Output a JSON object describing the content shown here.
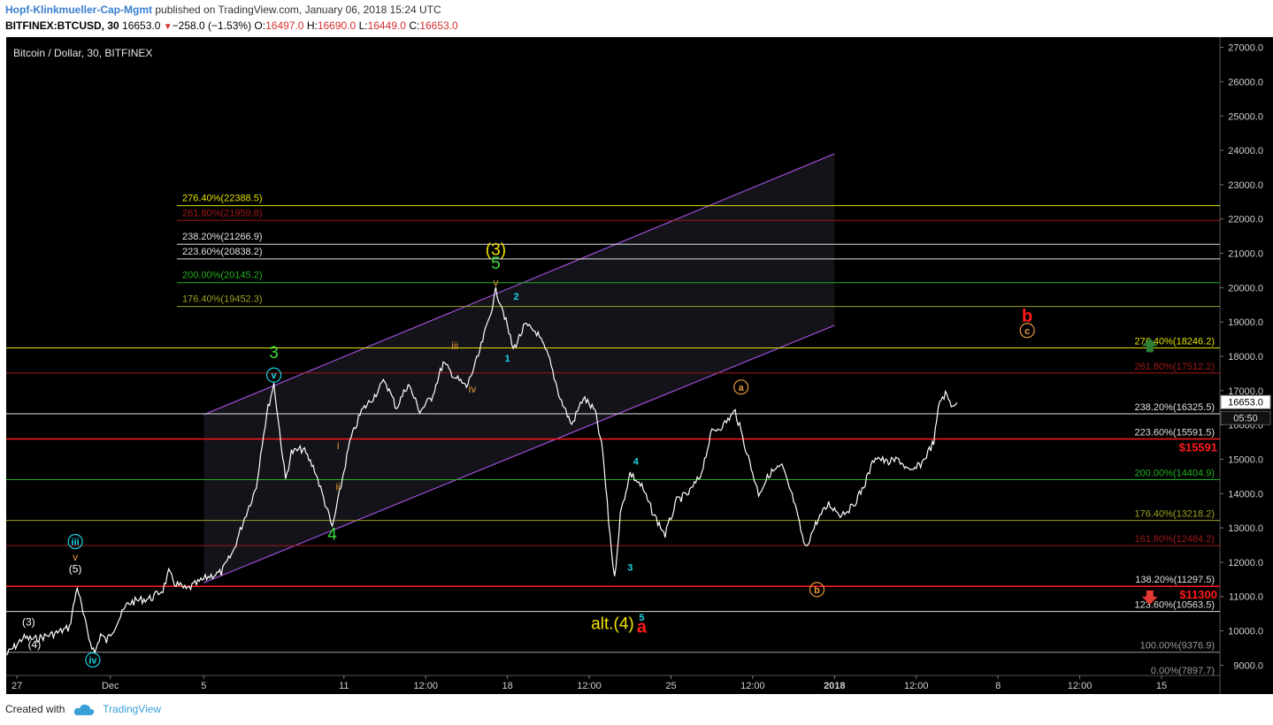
{
  "header": {
    "author": "Hopf-Klinkmueller-Cap-Mgmt",
    "published_text": "published on TradingView.com, January 06, 2018 15:24 UTC",
    "symbol": "BITFINEX:BTCUSD, 30",
    "last": "16653.0",
    "change": "−258.0 (−1.53%)",
    "o_label": "O:",
    "o_value": "16497.0",
    "h_label": "H:",
    "h_value": "16690.0",
    "l_label": "L:",
    "l_value": "16449.0",
    "c_label": "C:",
    "c_value": "16653.0"
  },
  "chart_title": "Bitcoin / Dollar, 30, BITFINEX",
  "price_tag": "16653.0",
  "countdown_tag": "05:50",
  "footer": {
    "created_with": "Created with",
    "brand": "TradingView"
  },
  "colors": {
    "background": "#000000",
    "price": "#ffffff",
    "channel": "#9c4fd6",
    "fib_yellow": "#e0e000",
    "fib_red": "#a01818",
    "fib_white": "#e0e0e0",
    "fib_green": "#20b020",
    "fib_olive": "#a0a020",
    "fib_gray": "#9a9a9a",
    "key_red": "#ff1a1a",
    "wave_green": "#3ddc3d",
    "wave_yellow": "#f5e400",
    "wave_orange": "#e89a3c",
    "wave_cyan": "#19d3e6"
  },
  "chart_data": {
    "type": "line",
    "title": "Bitcoin / Dollar, 30, BITFINEX",
    "y_range": [
      8700,
      27300
    ],
    "x_range": [
      "2017-11-26 13:00",
      "2018-01-17 12:00"
    ],
    "x_ticks": [
      {
        "t": "2017-11-27 00:00",
        "label": "27"
      },
      {
        "t": "2017-12-01 00:00",
        "label": "Dec"
      },
      {
        "t": "2017-12-05 00:00",
        "label": "5"
      },
      {
        "t": "2017-12-11 00:00",
        "label": "11"
      },
      {
        "t": "2017-12-14 12:00",
        "label": "12:00"
      },
      {
        "t": "2017-12-18 00:00",
        "label": "18"
      },
      {
        "t": "2017-12-21 12:00",
        "label": "12:00"
      },
      {
        "t": "2017-12-25 00:00",
        "label": "25"
      },
      {
        "t": "2017-12-28 12:00",
        "label": "12:00"
      },
      {
        "t": "2018-01-01 00:00",
        "label": "2018"
      },
      {
        "t": "2018-01-04 12:00",
        "label": "12:00"
      },
      {
        "t": "2018-01-08 00:00",
        "label": "8"
      },
      {
        "t": "2018-01-11 12:00",
        "label": "12:00"
      },
      {
        "t": "2018-01-15 00:00",
        "label": "15"
      }
    ],
    "y_ticks": [
      "27000.0",
      "26000.0",
      "25000.0",
      "24000.0",
      "23000.0",
      "22000.0",
      "21000.0",
      "20000.0",
      "19000.0",
      "18000.0",
      "17000.0",
      "16000.0",
      "15000.0",
      "14000.0",
      "13000.0",
      "12000.0",
      "11000.0",
      "10000.0",
      "9000.0"
    ],
    "series": [
      {
        "points": [
          [
            "2017-11-26 13:00",
            9300
          ],
          [
            "2017-11-27 00:00",
            9600
          ],
          [
            "2017-11-27 06:00",
            9800
          ],
          [
            "2017-11-27 18:00",
            9750
          ],
          [
            "2017-11-28 06:00",
            9850
          ],
          [
            "2017-11-28 18:00",
            9950
          ],
          [
            "2017-11-29 06:00",
            10100
          ],
          [
            "2017-11-29 14:00",
            11300
          ],
          [
            "2017-11-29 20:00",
            10500
          ],
          [
            "2017-11-30 02:00",
            9800
          ],
          [
            "2017-11-30 08:00",
            9350
          ],
          [
            "2017-11-30 14:00",
            9900
          ],
          [
            "2017-11-30 20:00",
            9700
          ],
          [
            "2017-12-01 06:00",
            10200
          ],
          [
            "2017-12-01 18:00",
            10800
          ],
          [
            "2017-12-02 06:00",
            10900
          ],
          [
            "2017-12-02 18:00",
            10950
          ],
          [
            "2017-12-03 06:00",
            11200
          ],
          [
            "2017-12-03 12:00",
            11700
          ],
          [
            "2017-12-03 18:00",
            11400
          ],
          [
            "2017-12-04 06:00",
            11200
          ],
          [
            "2017-12-04 18:00",
            11400
          ],
          [
            "2017-12-05 06:00",
            11600
          ],
          [
            "2017-12-05 18:00",
            11700
          ],
          [
            "2017-12-06 06:00",
            12300
          ],
          [
            "2017-12-06 18:00",
            13300
          ],
          [
            "2017-12-07 06:00",
            14200
          ],
          [
            "2017-12-07 12:00",
            15500
          ],
          [
            "2017-12-07 18:00",
            16500
          ],
          [
            "2017-12-08 00:00",
            17200
          ],
          [
            "2017-12-08 06:00",
            15800
          ],
          [
            "2017-12-08 12:00",
            14400
          ],
          [
            "2017-12-08 18:00",
            15200
          ],
          [
            "2017-12-09 06:00",
            15300
          ],
          [
            "2017-12-09 18:00",
            14700
          ],
          [
            "2017-12-10 06:00",
            13600
          ],
          [
            "2017-12-10 12:00",
            13000
          ],
          [
            "2017-12-10 18:00",
            13800
          ],
          [
            "2017-12-11 06:00",
            15500
          ],
          [
            "2017-12-11 18:00",
            16400
          ],
          [
            "2017-12-12 06:00",
            16800
          ],
          [
            "2017-12-12 18:00",
            17300
          ],
          [
            "2017-12-13 06:00",
            16500
          ],
          [
            "2017-12-13 18:00",
            17200
          ],
          [
            "2017-12-14 06:00",
            16400
          ],
          [
            "2017-12-14 18:00",
            16800
          ],
          [
            "2017-12-15 06:00",
            17800
          ],
          [
            "2017-12-15 18:00",
            17400
          ],
          [
            "2017-12-16 06:00",
            17100
          ],
          [
            "2017-12-16 18:00",
            18000
          ],
          [
            "2017-12-17 06:00",
            19200
          ],
          [
            "2017-12-17 12:00",
            19900
          ],
          [
            "2017-12-17 18:00",
            19500
          ],
          [
            "2017-12-18 06:00",
            18200
          ],
          [
            "2017-12-18 18:00",
            18900
          ],
          [
            "2017-12-19 06:00",
            18700
          ],
          [
            "2017-12-19 18:00",
            18000
          ],
          [
            "2017-12-20 06:00",
            16800
          ],
          [
            "2017-12-20 18:00",
            16000
          ],
          [
            "2017-12-21 06:00",
            16800
          ],
          [
            "2017-12-21 18:00",
            16400
          ],
          [
            "2017-12-22 02:00",
            15200
          ],
          [
            "2017-12-22 08:00",
            13200
          ],
          [
            "2017-12-22 14:00",
            11500
          ],
          [
            "2017-12-22 20:00",
            13400
          ],
          [
            "2017-12-23 06:00",
            14600
          ],
          [
            "2017-12-23 18:00",
            14200
          ],
          [
            "2017-12-24 06:00",
            13400
          ],
          [
            "2017-12-24 18:00",
            12800
          ],
          [
            "2017-12-25 06:00",
            13800
          ],
          [
            "2017-12-25 18:00",
            14000
          ],
          [
            "2017-12-26 06:00",
            14500
          ],
          [
            "2017-12-26 18:00",
            15800
          ],
          [
            "2017-12-27 06:00",
            16000
          ],
          [
            "2017-12-27 18:00",
            16400
          ],
          [
            "2017-12-28 06:00",
            15200
          ],
          [
            "2017-12-28 18:00",
            14000
          ],
          [
            "2017-12-29 06:00",
            14600
          ],
          [
            "2017-12-29 18:00",
            14800
          ],
          [
            "2017-12-30 06:00",
            13800
          ],
          [
            "2017-12-30 18:00",
            12400
          ],
          [
            "2017-12-31 06:00",
            13200
          ],
          [
            "2017-12-31 18:00",
            13700
          ],
          [
            "2018-01-01 06:00",
            13400
          ],
          [
            "2018-01-01 18:00",
            13600
          ],
          [
            "2018-01-02 06:00",
            14200
          ],
          [
            "2018-01-02 18:00",
            15100
          ],
          [
            "2018-01-03 06:00",
            14900
          ],
          [
            "2018-01-03 18:00",
            15000
          ],
          [
            "2018-01-04 06:00",
            14600
          ],
          [
            "2018-01-04 18:00",
            14900
          ],
          [
            "2018-01-05 06:00",
            15500
          ],
          [
            "2018-01-05 12:00",
            16700
          ],
          [
            "2018-01-05 18:00",
            16900
          ],
          [
            "2018-01-06 00:00",
            16600
          ],
          [
            "2018-01-06 06:00",
            16653
          ]
        ]
      }
    ],
    "channel": {
      "upper": [
        [
          "2017-12-05 00:00",
          16300
        ],
        [
          "2018-01-01 00:00",
          23900
        ]
      ],
      "lower": [
        [
          "2017-12-05 00:00",
          11400
        ],
        [
          "2018-01-01 00:00",
          18900
        ]
      ]
    },
    "fib_levels_left": [
      {
        "label": "276.40%(22388.5)",
        "value": 22388.5,
        "color": "#e0e000"
      },
      {
        "label": "261.80%(21959.8)",
        "value": 21959.8,
        "color": "#a01818"
      },
      {
        "label": "238.20%(21266.9)",
        "value": 21266.9,
        "color": "#e0e0e0"
      },
      {
        "label": "223.60%(20838.2)",
        "value": 20838.2,
        "color": "#e0e0e0"
      },
      {
        "label": "200.00%(20145.2)",
        "value": 20145.2,
        "color": "#20b020"
      },
      {
        "label": "176.40%(19452.3)",
        "value": 19452.3,
        "color": "#a0a020"
      }
    ],
    "fib_levels_right": [
      {
        "label": "276.40%(18246.2)",
        "value": 18246.2,
        "color": "#e0e000"
      },
      {
        "label": "261.80%(17512.2)",
        "value": 17512.2,
        "color": "#a01818"
      },
      {
        "label": "238.20%(16325.5)",
        "value": 16325.5,
        "color": "#e0e0e0"
      },
      {
        "label": "223.60%(15591.5)",
        "value": 15591.5,
        "color": "#e0e0e0"
      },
      {
        "label": "200.00%(14404.9)",
        "value": 14404.9,
        "color": "#20b020"
      },
      {
        "label": "176.40%(13218.2)",
        "value": 13218.2,
        "color": "#a0a020"
      },
      {
        "label": "161.80%(12484.2)",
        "value": 12484.2,
        "color": "#a01818"
      },
      {
        "label": "138.20%(11297.5)",
        "value": 11297.5,
        "color": "#e0e0e0"
      },
      {
        "label": "123.60%(10563.5)",
        "value": 10563.5,
        "color": "#e0e0e0"
      },
      {
        "label": "100.00%(9376.9)",
        "value": 9376.9,
        "color": "#9a9a9a"
      },
      {
        "label": "0.00%(7897.7)",
        "value": 7897.7,
        "color": "#9a9a9a"
      }
    ],
    "key_levels": [
      {
        "label": "$15591",
        "value": 15591,
        "color": "#ff1a1a"
      },
      {
        "label": "$11300",
        "value": 11300,
        "color": "#ff1a1a"
      }
    ],
    "annotations": [
      {
        "text": "(3)",
        "t": "2017-12-17 12:00",
        "v": 20950,
        "color": "#f5e400",
        "style": "big"
      },
      {
        "text": "5",
        "t": "2017-12-17 12:00",
        "v": 20550,
        "color": "#3ddc3d",
        "style": "big"
      },
      {
        "text": "v",
        "t": "2017-12-17 12:00",
        "v": 20050,
        "color": "#e89a3c",
        "style": "small"
      },
      {
        "text": "2",
        "t": "2017-12-18 09:00",
        "v": 19650,
        "color": "#19d3e6",
        "style": "tiny"
      },
      {
        "text": "1",
        "t": "2017-12-18 00:00",
        "v": 17850,
        "color": "#19d3e6",
        "style": "tiny"
      },
      {
        "text": "iii",
        "t": "2017-12-15 18:00",
        "v": 18200,
        "color": "#e89a3c",
        "style": "small"
      },
      {
        "text": "iv",
        "t": "2017-12-16 12:00",
        "v": 16950,
        "color": "#e89a3c",
        "style": "small"
      },
      {
        "text": "3",
        "t": "2017-12-08 00:00",
        "v": 17950,
        "color": "#3ddc3d",
        "style": "big"
      },
      {
        "text": "v",
        "t": "2017-12-08 00:00",
        "v": 17350,
        "color": "#19d3e6",
        "style": "circle"
      },
      {
        "text": "i",
        "t": "2017-12-10 18:00",
        "v": 15300,
        "color": "#e89a3c",
        "style": "small"
      },
      {
        "text": "ii",
        "t": "2017-12-10 18:00",
        "v": 14100,
        "color": "#e89a3c",
        "style": "small"
      },
      {
        "text": "4",
        "t": "2017-12-10 12:00",
        "v": 12650,
        "color": "#3ddc3d",
        "style": "big"
      },
      {
        "text": "iii",
        "t": "2017-11-29 12:00",
        "v": 12500,
        "color": "#19d3e6",
        "style": "circle"
      },
      {
        "text": "v",
        "t": "2017-11-29 12:00",
        "v": 12050,
        "color": "#e89a3c",
        "style": "small"
      },
      {
        "text": "(5)",
        "t": "2017-11-29 12:00",
        "v": 11700,
        "color": "#ffffff",
        "style": "small"
      },
      {
        "text": "(3)",
        "t": "2017-11-27 12:00",
        "v": 10150,
        "color": "#ffffff",
        "style": "small"
      },
      {
        "text": "(4)",
        "t": "2017-11-27 18:00",
        "v": 9500,
        "color": "#ffffff",
        "style": "small"
      },
      {
        "text": "iv",
        "t": "2017-11-30 06:00",
        "v": 9050,
        "color": "#19d3e6",
        "style": "circle"
      },
      {
        "text": "4",
        "t": "2017-12-23 12:00",
        "v": 14850,
        "color": "#19d3e6",
        "style": "tiny"
      },
      {
        "text": "3",
        "t": "2017-12-23 06:00",
        "v": 11750,
        "color": "#19d3e6",
        "style": "tiny"
      },
      {
        "text": "5",
        "t": "2017-12-23 18:00",
        "v": 10300,
        "color": "#19d3e6",
        "style": "tiny"
      },
      {
        "text": "alt.(4)",
        "t": "2017-12-22 12:00",
        "v": 10050,
        "color": "#f5e400",
        "style": "big"
      },
      {
        "text": "a",
        "t": "2017-12-23 18:00",
        "v": 9950,
        "color": "#ff1a1a",
        "style": "bigbold"
      },
      {
        "text": "a",
        "t": "2017-12-28 00:00",
        "v": 17000,
        "color": "#e89a3c",
        "style": "circle"
      },
      {
        "text": "b",
        "t": "2017-12-31 06:00",
        "v": 11100,
        "color": "#e89a3c",
        "style": "circle"
      },
      {
        "text": "b",
        "t": "2018-01-09 06:00",
        "v": 19000,
        "color": "#ff1a1a",
        "style": "bigbold"
      },
      {
        "text": "c",
        "t": "2018-01-09 06:00",
        "v": 18650,
        "color": "#e89a3c",
        "style": "circle"
      }
    ],
    "arrows": [
      {
        "direction": "up",
        "t": "2018-01-14 12:00",
        "v": 18300,
        "color": "#2e7d32"
      },
      {
        "direction": "down",
        "t": "2018-01-14 12:00",
        "v": 11000,
        "color": "#e53935"
      }
    ],
    "grid": false
  }
}
